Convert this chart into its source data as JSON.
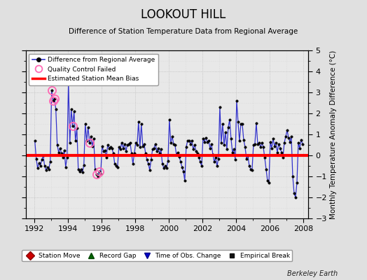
{
  "title": "LOOKOUT HILL",
  "subtitle": "Difference of Station Temperature Data from Regional Average",
  "ylabel": "Monthly Temperature Anomaly Difference (°C)",
  "xlim": [
    1991.5,
    2008.3
  ],
  "ylim": [
    -3,
    5
  ],
  "yticks": [
    -3,
    -2,
    -1,
    0,
    1,
    2,
    3,
    4,
    5
  ],
  "xticks": [
    1992,
    1994,
    1996,
    1998,
    2000,
    2002,
    2004,
    2006,
    2008
  ],
  "bias_value": 0.0,
  "background_color": "#e0e0e0",
  "plot_bg_color": "#e8e8e8",
  "line_color": "#3333cc",
  "bias_color": "#ff0000",
  "marker_color": "#000000",
  "qc_color": "#ff69b4",
  "watermark": "Berkeley Earth",
  "time_series": [
    1992.042,
    1992.125,
    1992.208,
    1992.292,
    1992.375,
    1992.458,
    1992.542,
    1992.625,
    1992.708,
    1992.792,
    1992.875,
    1992.958,
    1993.042,
    1993.125,
    1993.208,
    1993.292,
    1993.375,
    1993.458,
    1993.542,
    1993.625,
    1993.708,
    1993.792,
    1993.875,
    1993.958,
    1994.042,
    1994.125,
    1994.208,
    1994.292,
    1994.375,
    1994.458,
    1994.542,
    1994.625,
    1994.708,
    1994.792,
    1994.875,
    1994.958,
    1995.042,
    1995.125,
    1995.208,
    1995.292,
    1995.375,
    1995.458,
    1995.542,
    1995.625,
    1995.708,
    1995.792,
    1995.875,
    1995.958,
    1996.042,
    1996.125,
    1996.208,
    1996.292,
    1996.375,
    1996.458,
    1996.542,
    1996.625,
    1996.708,
    1996.792,
    1996.875,
    1996.958,
    1997.042,
    1997.125,
    1997.208,
    1997.292,
    1997.375,
    1997.458,
    1997.542,
    1997.625,
    1997.708,
    1997.792,
    1997.875,
    1997.958,
    1998.042,
    1998.125,
    1998.208,
    1998.292,
    1998.375,
    1998.458,
    1998.542,
    1998.625,
    1998.708,
    1998.792,
    1998.875,
    1998.958,
    1999.042,
    1999.125,
    1999.208,
    1999.292,
    1999.375,
    1999.458,
    1999.542,
    1999.625,
    1999.708,
    1999.792,
    1999.875,
    1999.958,
    2000.042,
    2000.125,
    2000.208,
    2000.292,
    2000.375,
    2000.458,
    2000.542,
    2000.625,
    2000.708,
    2000.792,
    2000.875,
    2000.958,
    2001.042,
    2001.125,
    2001.208,
    2001.292,
    2001.375,
    2001.458,
    2001.542,
    2001.625,
    2001.708,
    2001.792,
    2001.875,
    2001.958,
    2002.042,
    2002.125,
    2002.208,
    2002.292,
    2002.375,
    2002.458,
    2002.542,
    2002.625,
    2002.708,
    2002.792,
    2002.875,
    2002.958,
    2003.042,
    2003.125,
    2003.208,
    2003.292,
    2003.375,
    2003.458,
    2003.542,
    2003.625,
    2003.708,
    2003.792,
    2003.875,
    2003.958,
    2004.042,
    2004.125,
    2004.208,
    2004.292,
    2004.375,
    2004.458,
    2004.542,
    2004.625,
    2004.708,
    2004.792,
    2004.875,
    2004.958,
    2005.042,
    2005.125,
    2005.208,
    2005.292,
    2005.375,
    2005.458,
    2005.542,
    2005.625,
    2005.708,
    2005.792,
    2005.875,
    2005.958,
    2006.042,
    2006.125,
    2006.208,
    2006.292,
    2006.375,
    2006.458,
    2006.542,
    2006.625,
    2006.708,
    2006.792,
    2006.875,
    2006.958,
    2007.042,
    2007.125,
    2007.208,
    2007.292,
    2007.375,
    2007.458,
    2007.542,
    2007.625,
    2007.708,
    2007.792,
    2007.875,
    2007.958
  ],
  "values": [
    0.7,
    -0.15,
    -0.6,
    -0.35,
    -0.5,
    -0.2,
    0.0,
    -0.5,
    -0.7,
    -0.55,
    -0.65,
    -0.3,
    3.1,
    2.6,
    2.7,
    2.2,
    0.5,
    0.15,
    0.35,
    0.1,
    -0.1,
    0.25,
    -0.55,
    -0.1,
    3.55,
    0.6,
    2.2,
    1.4,
    2.1,
    0.7,
    1.3,
    -0.65,
    -0.75,
    -0.65,
    -0.8,
    -0.45,
    1.5,
    0.7,
    1.35,
    0.6,
    0.9,
    0.45,
    0.8,
    -0.65,
    -0.9,
    -1.0,
    -0.75,
    -0.9,
    0.45,
    0.2,
    0.25,
    -0.1,
    0.5,
    0.35,
    0.4,
    0.35,
    0.1,
    -0.4,
    -0.5,
    -0.55,
    0.4,
    0.3,
    0.6,
    0.35,
    0.55,
    0.2,
    0.5,
    0.55,
    0.6,
    0.1,
    -0.4,
    0.1,
    0.6,
    0.5,
    1.6,
    0.4,
    1.5,
    0.45,
    0.55,
    0.1,
    -0.2,
    -0.4,
    -0.7,
    -0.2,
    0.3,
    0.35,
    0.55,
    0.2,
    0.35,
    0.1,
    0.3,
    -0.4,
    -0.6,
    -0.5,
    -0.6,
    -0.25,
    1.7,
    0.6,
    0.9,
    0.55,
    0.5,
    0.05,
    0.15,
    -0.05,
    -0.3,
    -0.55,
    -0.75,
    -1.2,
    0.4,
    0.7,
    0.7,
    0.55,
    0.7,
    0.3,
    0.5,
    0.2,
    0.1,
    -0.1,
    -0.3,
    -0.5,
    0.8,
    0.65,
    0.85,
    0.65,
    0.7,
    0.35,
    0.55,
    0.05,
    -0.3,
    -0.1,
    -0.5,
    -0.15,
    2.3,
    0.6,
    1.5,
    0.5,
    1.1,
    0.3,
    1.35,
    1.7,
    0.8,
    0.15,
    0.3,
    -0.2,
    2.6,
    1.6,
    0.7,
    1.5,
    1.5,
    0.75,
    0.4,
    -0.15,
    0.0,
    -0.5,
    -0.65,
    -0.7,
    0.5,
    0.55,
    1.55,
    0.55,
    0.6,
    0.4,
    0.6,
    0.4,
    -0.1,
    -0.65,
    -1.2,
    -1.3,
    0.65,
    0.35,
    0.8,
    0.45,
    0.6,
    0.15,
    0.55,
    0.35,
    0.15,
    -0.1,
    0.6,
    0.9,
    1.2,
    0.85,
    0.65,
    0.9,
    -1.0,
    -1.8,
    -2.0,
    -1.3,
    0.6,
    0.35,
    0.75,
    0.55
  ],
  "qc_failed_times": [
    1993.042,
    1993.125,
    1993.208,
    1994.042,
    1994.292,
    1995.292,
    1995.708,
    1995.875
  ],
  "qc_failed_values": [
    3.1,
    2.6,
    2.7,
    3.55,
    1.4,
    0.6,
    -0.9,
    -0.75
  ]
}
